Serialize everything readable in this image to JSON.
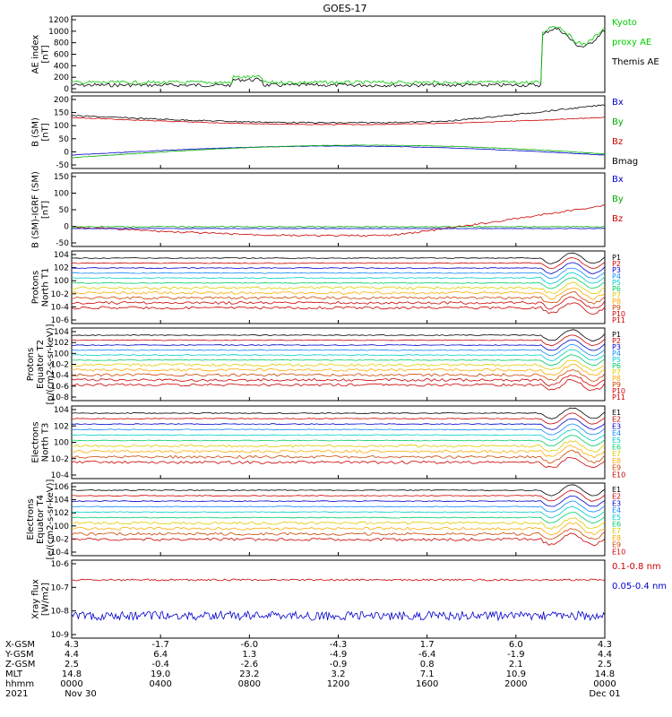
{
  "title": "GOES-17",
  "xaxis": {
    "tick_labels": [
      "0000",
      "0400",
      "0800",
      "1200",
      "1600",
      "2000",
      "0000"
    ],
    "row_labels": [
      "X-GSM",
      "Y-GSM",
      "Z-GSM",
      "MLT",
      "hhmm",
      "2021"
    ],
    "rows": [
      [
        "4.3",
        "-1.7",
        "-6.0",
        "-4.3",
        "1.7",
        "6.0",
        "4.3"
      ],
      [
        "4.4",
        "6.4",
        "1.3",
        "-4.9",
        "-6.4",
        "-1.9",
        "4.4"
      ],
      [
        "2.5",
        "-0.4",
        "-2.6",
        "-0.9",
        "0.8",
        "2.1",
        "2.5"
      ],
      [
        "14.8",
        "19.0",
        "23.2",
        "3.2",
        "7.1",
        "10.9",
        "14.8"
      ]
    ],
    "dates": [
      "Nov 30",
      "Dec 01"
    ]
  },
  "chart_data": [
    {
      "type": "line",
      "ylabel": "AE index\n[nT]",
      "ytick_labels": [
        "0",
        "200",
        "400",
        "600",
        "800",
        "1000",
        "1200"
      ],
      "legend": [
        {
          "name": "Kyoto",
          "color": "#00cc00"
        },
        {
          "name": "proxy AE",
          "color": "#00cc00"
        },
        {
          "name": "Themis AE",
          "color": "#000000"
        }
      ]
    },
    {
      "type": "line",
      "ylabel": "B (SM)\n[nT]",
      "ytick_labels": [
        "-50",
        "0",
        "50",
        "100",
        "150",
        "200"
      ],
      "legend": [
        {
          "name": "Bx",
          "color": "#0000cc"
        },
        {
          "name": "By",
          "color": "#00aa00"
        },
        {
          "name": "Bz",
          "color": "#cc0000"
        },
        {
          "name": "Bmag",
          "color": "#000000"
        }
      ]
    },
    {
      "type": "line",
      "ylabel": "B (SM)-IGRF (SM)\n[nT]",
      "ytick_labels": [
        "-50",
        "0",
        "50",
        "100",
        "150"
      ],
      "legend": [
        {
          "name": "Bx",
          "color": "#0000cc"
        },
        {
          "name": "By",
          "color": "#00aa00"
        },
        {
          "name": "Bz",
          "color": "#cc0000"
        }
      ]
    },
    {
      "type": "line",
      "ylabel": "Protons\nNorth T1",
      "ytick_labels": [
        "10-6",
        "10-4",
        "10-2",
        "100",
        "102",
        "104"
      ],
      "legend": [
        "P1",
        "P2",
        "P3",
        "P4",
        "P5",
        "P6",
        "P7",
        "P8",
        "P9",
        "P10",
        "P11"
      ]
    },
    {
      "type": "line",
      "ylabel": "Protons\nEquator T2\n[p/(cm2-s-sr-keV)]",
      "ytick_labels": [
        "10-8",
        "10-6",
        "10-4",
        "10-2",
        "100",
        "102",
        "104"
      ],
      "legend": [
        "P1",
        "P2",
        "P3",
        "P4",
        "P5",
        "P6",
        "P7",
        "P8",
        "P9",
        "P10",
        "P11"
      ]
    },
    {
      "type": "line",
      "ylabel": "Electrons\nNorth T3",
      "ytick_labels": [
        "10-4",
        "10-2",
        "100",
        "102",
        "104"
      ],
      "legend": [
        "E1",
        "E2",
        "E3",
        "E4",
        "E5",
        "E6",
        "E7",
        "E8",
        "E9",
        "E10"
      ]
    },
    {
      "type": "line",
      "ylabel": "Electrons\nEquator T4\n[e/(cm2-s-sr-keV)]",
      "ytick_labels": [
        "10-4",
        "10-2",
        "100",
        "102",
        "104",
        "106"
      ],
      "legend": [
        "E1",
        "E2",
        "E3",
        "E4",
        "E5",
        "E6",
        "E7",
        "E8",
        "E9",
        "E10"
      ]
    },
    {
      "type": "line",
      "ylabel": "Xray flux\n[W/m2]",
      "ytick_labels": [
        "10-9",
        "10-8",
        "10-7",
        "10-6"
      ],
      "legend": [
        {
          "name": "0.1-0.8 nm",
          "color": "#cc0000"
        },
        {
          "name": "0.05-0.4 nm",
          "color": "#0000cc"
        }
      ]
    }
  ],
  "colors": {
    "channels": [
      "#000000",
      "#cc0000",
      "#0000cc",
      "#1188ff",
      "#00cccc",
      "#00cc66",
      "#ddcc00",
      "#ffaa00",
      "#cc4400",
      "#cc0000",
      "#cc0000"
    ]
  }
}
